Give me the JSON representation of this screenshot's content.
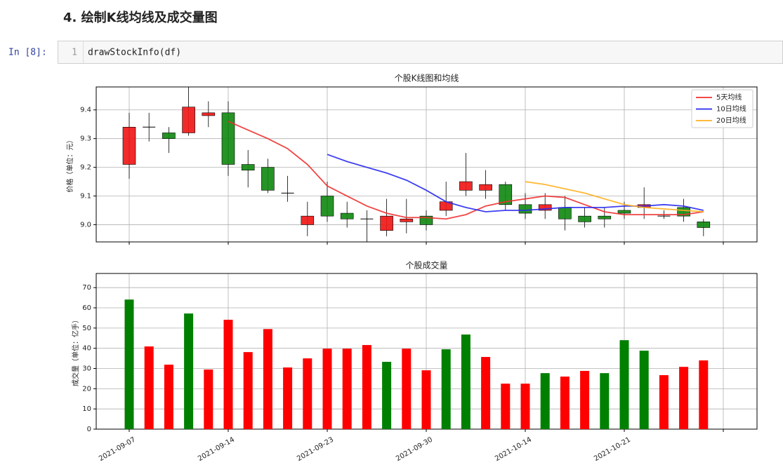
{
  "header": {
    "title": "4. 绘制K线均线及成交量图"
  },
  "cell": {
    "prompt": "In [8]:",
    "line_number": "1",
    "code": "drawStockInfo(df)"
  },
  "chart_data": [
    {
      "type": "candlestick",
      "title": "个股K线图和均线",
      "ylabel": "价格（单位：元）",
      "open": [
        9.21,
        9.34,
        9.32,
        9.32,
        9.38,
        9.39,
        9.21,
        9.2,
        9.11,
        9.0,
        9.1,
        9.04,
        9.02,
        8.98,
        9.01,
        9.03,
        9.05,
        9.12,
        9.12,
        9.14,
        9.07,
        9.05,
        9.06,
        9.03,
        9.03,
        9.05,
        9.06,
        9.03,
        9.06,
        9.01
      ],
      "close": [
        9.34,
        9.34,
        9.3,
        9.41,
        9.39,
        9.21,
        9.19,
        9.12,
        9.11,
        9.03,
        9.03,
        9.02,
        9.02,
        9.03,
        9.02,
        9.0,
        9.08,
        9.15,
        9.14,
        9.07,
        9.04,
        9.07,
        9.02,
        9.01,
        9.02,
        9.04,
        9.07,
        9.03,
        9.03,
        8.99
      ],
      "high": [
        9.39,
        9.39,
        9.34,
        9.48,
        9.43,
        9.43,
        9.26,
        9.23,
        9.17,
        9.08,
        9.15,
        9.08,
        9.05,
        9.09,
        9.09,
        9.05,
        9.15,
        9.25,
        9.19,
        9.15,
        9.11,
        9.11,
        9.1,
        9.06,
        9.06,
        9.08,
        9.13,
        9.05,
        9.09,
        9.02
      ],
      "low": [
        9.16,
        9.29,
        9.25,
        9.31,
        9.34,
        9.17,
        9.13,
        9.11,
        9.08,
        8.96,
        9.01,
        8.99,
        8.94,
        8.96,
        8.97,
        8.98,
        9.03,
        9.1,
        9.09,
        9.05,
        9.02,
        9.02,
        8.98,
        8.99,
        8.99,
        9.02,
        9.02,
        9.02,
        9.01,
        8.96
      ],
      "up_color": "#f01818",
      "down_color": "#138a13",
      "series": [
        {
          "name": "5天均线",
          "color": "#f03030",
          "values": [
            null,
            null,
            null,
            null,
            null,
            9.36,
            9.33,
            9.3,
            9.265,
            9.21,
            9.135,
            9.1,
            9.065,
            9.04,
            9.025,
            9.025,
            9.02,
            9.035,
            9.065,
            9.08,
            9.09,
            9.1,
            9.095,
            9.07,
            9.045,
            9.035,
            9.035,
            9.035,
            9.035,
            9.045
          ]
        },
        {
          "name": "10日均线",
          "color": "#2a2af0",
          "values": [
            null,
            null,
            null,
            null,
            null,
            null,
            null,
            null,
            null,
            null,
            9.245,
            9.22,
            9.2,
            9.18,
            9.155,
            9.12,
            9.08,
            9.06,
            9.045,
            9.05,
            9.05,
            9.055,
            9.06,
            9.06,
            9.06,
            9.065,
            9.065,
            9.07,
            9.065,
            9.05
          ]
        },
        {
          "name": "20日均线",
          "color": "#ffb020",
          "values": [
            null,
            null,
            null,
            null,
            null,
            null,
            null,
            null,
            null,
            null,
            null,
            null,
            null,
            null,
            null,
            null,
            null,
            null,
            null,
            null,
            9.15,
            9.14,
            9.125,
            9.11,
            9.09,
            9.07,
            9.06,
            9.055,
            9.05,
            9.045
          ]
        }
      ],
      "ylim": [
        8.94,
        9.48
      ],
      "yticks": [
        {
          "value": 9.0,
          "label": "9.0"
        },
        9.1,
        9.2,
        9.3,
        9.4
      ],
      "grid": true,
      "legend": "upper right"
    },
    {
      "type": "bar",
      "title": "个股成交量",
      "ylabel": "成交量（单位：亿手）",
      "categories": [
        "2021-09-07",
        null,
        null,
        null,
        null,
        "2021-09-14",
        null,
        null,
        null,
        null,
        "2021-09-23",
        null,
        null,
        null,
        null,
        "2021-09-30",
        null,
        null,
        null,
        null,
        "2021-10-14",
        null,
        null,
        null,
        null,
        "2021-10-21",
        null,
        null,
        null,
        null
      ],
      "values": [
        64.1,
        40.9,
        31.9,
        57.2,
        29.5,
        54.1,
        38.1,
        49.5,
        30.5,
        35.0,
        39.8,
        39.8,
        41.6,
        33.3,
        39.8,
        29.1,
        39.5,
        46.8,
        35.7,
        22.5,
        22.5,
        27.7,
        26.0,
        28.8,
        27.7,
        44.0,
        38.8,
        26.7,
        30.8,
        34.0
      ],
      "colors": [
        "#008000",
        "#ff0000",
        "#ff0000",
        "#008000",
        "#ff0000",
        "#ff0000",
        "#ff0000",
        "#ff0000",
        "#ff0000",
        "#ff0000",
        "#ff0000",
        "#ff0000",
        "#ff0000",
        "#008000",
        "#ff0000",
        "#ff0000",
        "#008000",
        "#008000",
        "#ff0000",
        "#ff0000",
        "#ff0000",
        "#008000",
        "#ff0000",
        "#ff0000",
        "#008000",
        "#008000",
        "#008000",
        "#ff0000",
        "#ff0000",
        "#ff0000"
      ],
      "ylim": [
        0,
        77
      ],
      "yticks": [
        0,
        10,
        20,
        30,
        40,
        50,
        60,
        70
      ],
      "grid": true
    }
  ]
}
